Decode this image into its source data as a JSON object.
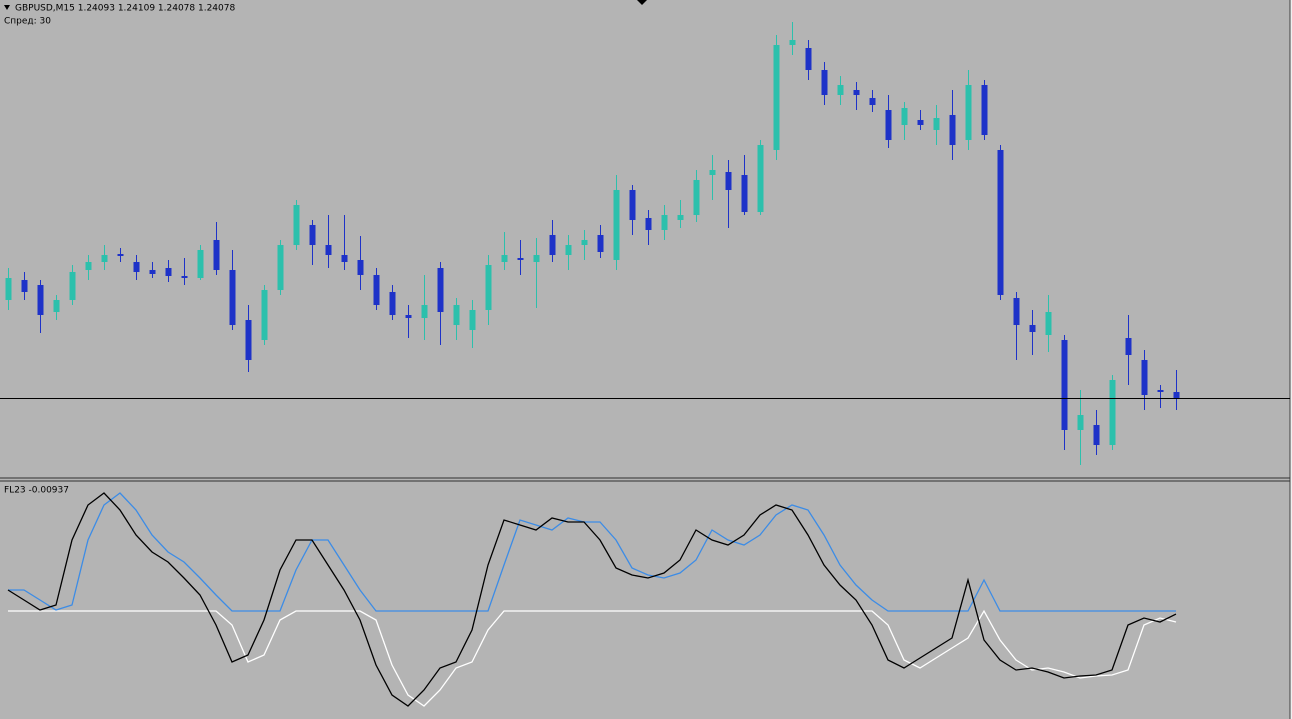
{
  "chart_data": [
    {
      "type": "candlestick",
      "title": "GBPUSD,M15  1.24093 1.24109 1.24078 1.24078",
      "subtitle": "Спред: 30",
      "up_color": "#2cc0ac",
      "down_color": "#1e32c8",
      "bid_line_color": "#000000",
      "ylim": [
        1.23758,
        1.2567
      ],
      "open": [
        1.2447,
        1.2455,
        1.2453,
        1.24422,
        1.2447,
        1.2459,
        1.24622,
        1.24654,
        1.24622,
        1.2459,
        1.24598,
        1.24566,
        1.24558,
        1.2471,
        1.2459,
        1.2439,
        1.2431,
        1.2451,
        1.2469,
        1.2477,
        1.2469,
        1.2465,
        1.2463,
        1.2457,
        1.24502,
        1.2441,
        1.24398,
        1.24598,
        1.2437,
        1.2435,
        1.2443,
        1.24622,
        1.24638,
        1.24622,
        1.2473,
        1.2465,
        1.2469,
        1.2473,
        1.2463,
        1.2491,
        1.24798,
        1.2475,
        1.2479,
        1.2481,
        1.2497,
        1.24982,
        1.2497,
        1.24822,
        1.2507,
        1.2549,
        1.25478,
        1.2539,
        1.2529,
        1.2531,
        1.25278,
        1.2523,
        1.2517,
        1.2519,
        1.2515,
        1.2521,
        1.2511,
        1.2533,
        1.2507,
        1.24478,
        1.2437,
        1.2433,
        1.2431,
        1.2395,
        1.2397,
        1.2389,
        1.24318,
        1.2423,
        1.2411,
        1.24102
      ],
      "high": [
        1.24598,
        1.24582,
        1.2455,
        1.2449,
        1.2461,
        1.2465,
        1.2469,
        1.24678,
        1.2465,
        1.24622,
        1.2463,
        1.24638,
        1.2469,
        1.24782,
        1.2467,
        1.2445,
        1.2453,
        1.2471,
        1.2487,
        1.2479,
        1.2481,
        1.2481,
        1.24726,
        1.24598,
        1.2453,
        1.2445,
        1.2457,
        1.24622,
        1.24478,
        1.2447,
        1.2465,
        1.24742,
        1.2471,
        1.24718,
        1.2479,
        1.2473,
        1.2475,
        1.2477,
        1.2497,
        1.2493,
        1.2483,
        1.2485,
        1.2487,
        1.2499,
        1.2505,
        1.2503,
        1.2505,
        1.2511,
        1.2553,
        1.25582,
        1.2551,
        1.25422,
        1.25366,
        1.25342,
        1.2531,
        1.2529,
        1.25262,
        1.2523,
        1.2525,
        1.2531,
        1.2539,
        1.2535,
        1.2509,
        1.24502,
        1.2443,
        1.2449,
        1.2433,
        1.2411,
        1.2403,
        1.2417,
        1.2441,
        1.2427,
        1.2413,
        1.2419
      ],
      "low": [
        1.2443,
        1.2447,
        1.24338,
        1.2439,
        1.2445,
        1.2455,
        1.2459,
        1.24622,
        1.2455,
        1.24558,
        1.24542,
        1.2453,
        1.2455,
        1.2457,
        1.2435,
        1.24182,
        1.2429,
        1.2449,
        1.2467,
        1.2461,
        1.24598,
        1.2459,
        1.2451,
        1.2443,
        1.2439,
        1.24318,
        1.2431,
        1.2429,
        1.2431,
        1.24278,
        1.2437,
        1.2459,
        1.2457,
        1.24438,
        1.24622,
        1.2459,
        1.2463,
        1.24638,
        1.2459,
        1.2473,
        1.2469,
        1.2471,
        1.24758,
        1.24782,
        1.2487,
        1.24758,
        1.2481,
        1.2481,
        1.2503,
        1.2545,
        1.2535,
        1.2525,
        1.2525,
        1.2523,
        1.25222,
        1.25078,
        1.2511,
        1.2515,
        1.2509,
        1.2503,
        1.2507,
        1.2511,
        1.2447,
        1.2423,
        1.2425,
        1.24262,
        1.2387,
        1.2381,
        1.2385,
        1.2387,
        1.2413,
        1.2403,
        1.24038,
        1.2403
      ],
      "close": [
        1.24558,
        1.24502,
        1.2441,
        1.2447,
        1.24582,
        1.24622,
        1.2465,
        1.24646,
        1.24582,
        1.24574,
        1.24566,
        1.24558,
        1.2467,
        1.2459,
        1.2437,
        1.2423,
        1.2451,
        1.2469,
        1.2485,
        1.2469,
        1.2465,
        1.24622,
        1.2457,
        1.2445,
        1.2441,
        1.24398,
        1.2445,
        1.24422,
        1.2445,
        1.2443,
        1.2461,
        1.2465,
        1.2463,
        1.2465,
        1.2465,
        1.2469,
        1.2471,
        1.24662,
        1.2491,
        1.2479,
        1.2475,
        1.2481,
        1.2481,
        1.2495,
        1.2499,
        1.2491,
        1.24822,
        1.2509,
        1.2549,
        1.2551,
        1.2539,
        1.2529,
        1.2533,
        1.2529,
        1.2525,
        1.2511,
        1.25238,
        1.2517,
        1.25198,
        1.2509,
        1.2533,
        1.2513,
        1.2449,
        1.2437,
        1.24342,
        1.24422,
        1.2395,
        1.2401,
        1.2389,
        1.2415,
        1.2425,
        1.2409,
        1.24102,
        1.24078
      ]
    },
    {
      "type": "line",
      "title": "FL23 -0.00937",
      "ylim": [
        -0.324,
        0.39
      ],
      "series": [
        {
          "color": "#000000",
          "values": [
            0.063,
            0.033,
            0.003,
            0.018,
            0.213,
            0.318,
            0.354,
            0.303,
            0.228,
            0.177,
            0.147,
            0.099,
            0.048,
            -0.042,
            -0.153,
            -0.132,
            -0.027,
            0.123,
            0.213,
            0.213,
            0.138,
            0.063,
            -0.027,
            -0.162,
            -0.252,
            -0.285,
            -0.237,
            -0.171,
            -0.153,
            -0.057,
            0.138,
            0.273,
            0.258,
            0.243,
            0.279,
            0.267,
            0.267,
            0.213,
            0.129,
            0.108,
            0.099,
            0.114,
            0.153,
            0.243,
            0.213,
            0.198,
            0.228,
            0.288,
            0.318,
            0.303,
            0.228,
            0.138,
            0.078,
            0.033,
            -0.042,
            -0.147,
            -0.171,
            -0.141,
            -0.111,
            -0.081,
            0.093,
            -0.087,
            -0.147,
            -0.177,
            -0.171,
            -0.183,
            -0.201,
            -0.195,
            -0.192,
            -0.177,
            -0.042,
            -0.021,
            -0.033,
            -0.00937
          ]
        },
        {
          "color": "#3c8ce6",
          "values": [
            0.063,
            0.063,
            0.033,
            0.003,
            0.018,
            0.213,
            0.318,
            0.354,
            0.303,
            0.228,
            0.177,
            0.147,
            0.099,
            0.048,
            0,
            0,
            0,
            0,
            0.123,
            0.213,
            0.213,
            0.138,
            0.063,
            0,
            0,
            0,
            0,
            0,
            0,
            0,
            0,
            0.138,
            0.273,
            0.258,
            0.243,
            0.279,
            0.267,
            0.267,
            0.213,
            0.129,
            0.108,
            0.099,
            0.114,
            0.153,
            0.243,
            0.213,
            0.198,
            0.228,
            0.288,
            0.318,
            0.303,
            0.228,
            0.138,
            0.078,
            0.033,
            0,
            0,
            0,
            0,
            0,
            0,
            0.093,
            0,
            0,
            0,
            0,
            0,
            0,
            0,
            0,
            0,
            0,
            0,
            0
          ]
        },
        {
          "color": "#ffffff",
          "values": [
            0,
            0,
            0,
            0,
            0,
            0,
            0,
            0,
            0,
            0,
            0,
            0,
            0,
            0,
            -0.042,
            -0.153,
            -0.132,
            -0.027,
            0,
            0,
            0,
            0,
            0,
            -0.027,
            -0.162,
            -0.252,
            -0.285,
            -0.237,
            -0.171,
            -0.153,
            -0.057,
            0,
            0,
            0,
            0,
            0,
            0,
            0,
            0,
            0,
            0,
            0,
            0,
            0,
            0,
            0,
            0,
            0,
            0,
            0,
            0,
            0,
            0,
            0,
            0,
            -0.042,
            -0.147,
            -0.171,
            -0.141,
            -0.111,
            -0.081,
            0,
            -0.087,
            -0.147,
            -0.177,
            -0.171,
            -0.183,
            -0.201,
            -0.195,
            -0.192,
            -0.177,
            -0.042,
            -0.021,
            -0.033
          ]
        }
      ]
    }
  ]
}
